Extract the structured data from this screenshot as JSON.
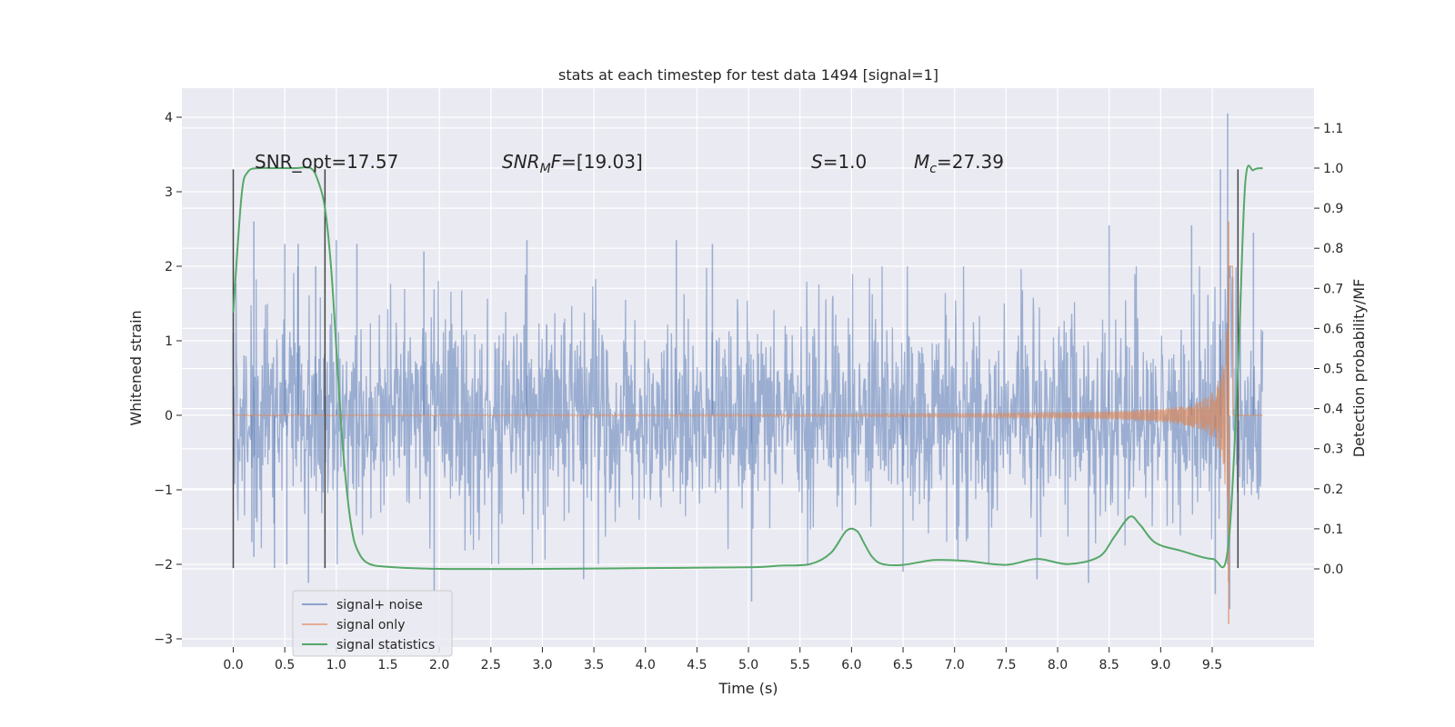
{
  "chart_data": {
    "type": "line",
    "title": "stats at each timestep for test data 1494 [signal=1]",
    "xlabel": "Time (s)",
    "ylabel": "Whitened strain",
    "y2label": "Detection probability/MF",
    "xlim": [
      -0.5,
      10.5
    ],
    "ylim": [
      -3.1,
      4.35
    ],
    "y2lim": [
      -0.195,
      1.17
    ],
    "x_ticks": [
      "0.0",
      "0.5",
      "1.0",
      "1.5",
      "2.0",
      "2.5",
      "3.0",
      "3.5",
      "4.0",
      "4.5",
      "5.0",
      "5.5",
      "6.0",
      "6.5",
      "7.0",
      "7.5",
      "8.0",
      "8.5",
      "9.0",
      "9.5"
    ],
    "y_ticks": [
      "−3",
      "−2",
      "−1",
      "0",
      "1",
      "2",
      "3",
      "4"
    ],
    "y2_ticks": [
      "0.0",
      "0.1",
      "0.2",
      "0.3",
      "0.4",
      "0.5",
      "0.6",
      "0.7",
      "0.8",
      "0.9",
      "1.0",
      "1.1"
    ],
    "grid": true,
    "legend_placement": "lower-left",
    "annotations": {
      "snr_opt": "SNR_opt=17.57",
      "snr_mf_sym": "SNR",
      "snr_mf_sub": "M",
      "snr_mf_rest": "F",
      "snr_mf_val": "=[19.03]",
      "s_sym": "S",
      "s_val": "=1.0",
      "mc_sym": "M",
      "mc_sub": "c",
      "mc_val": "=27.39"
    },
    "vlines": [
      {
        "x": 0.0,
        "y": [
          -2.05,
          3.3
        ]
      },
      {
        "x": 0.89,
        "y": [
          -2.05,
          3.3
        ]
      },
      {
        "x": 9.75,
        "y": [
          -2.05,
          3.3
        ]
      }
    ],
    "series": [
      {
        "name": "signal+ noise",
        "color": "#4c72b0",
        "kind": "noise",
        "x_range": [
          0.0,
          9.99
        ],
        "envelope": {
          "sigma": 0.55,
          "peaks": [
            {
              "x": 0.0,
              "y": 1.1
            },
            {
              "x": 0.18,
              "y": -1.7
            },
            {
              "x": 0.2,
              "y": 2.6
            },
            {
              "x": 0.2,
              "y": -1.9
            },
            {
              "x": 0.4,
              "y": -2.05
            },
            {
              "x": 0.5,
              "y": 2.3
            },
            {
              "x": 0.52,
              "y": -2.0
            },
            {
              "x": 0.63,
              "y": 2.3
            },
            {
              "x": 0.73,
              "y": -2.25
            },
            {
              "x": 0.8,
              "y": 2.0
            },
            {
              "x": 1.0,
              "y": 2.35
            },
            {
              "x": 1.2,
              "y": 2.3
            },
            {
              "x": 1.85,
              "y": 2.2
            },
            {
              "x": 1.95,
              "y": -2.35
            },
            {
              "x": 2.85,
              "y": 2.35
            },
            {
              "x": 3.4,
              "y": -2.2
            },
            {
              "x": 4.3,
              "y": 2.35
            },
            {
              "x": 4.65,
              "y": 2.3
            },
            {
              "x": 5.03,
              "y": -2.5
            },
            {
              "x": 6.5,
              "y": -2.1
            },
            {
              "x": 7.8,
              "y": -2.2
            },
            {
              "x": 8.3,
              "y": -2.25
            },
            {
              "x": 8.5,
              "y": 2.55
            },
            {
              "x": 9.3,
              "y": 2.55
            },
            {
              "x": 9.53,
              "y": -2.4
            },
            {
              "x": 9.58,
              "y": 3.3
            },
            {
              "x": 9.65,
              "y": 4.05
            },
            {
              "x": 9.67,
              "y": -2.6
            },
            {
              "x": 9.9,
              "y": 2.45
            }
          ]
        }
      },
      {
        "name": "signal only",
        "color": "#dd8452",
        "kind": "chirp",
        "x_range": [
          0.0,
          9.99
        ],
        "amplitude_start": 0.0,
        "merger_x": 9.66,
        "merger_amp": 2.6
      },
      {
        "name": "signal statistics",
        "color": "#55a868",
        "kind": "line",
        "axis": "right",
        "x": [
          0.0,
          0.08,
          0.14,
          0.25,
          0.4,
          0.6,
          0.75,
          0.82,
          0.89,
          0.95,
          1.0,
          1.05,
          1.1,
          1.15,
          1.2,
          1.3,
          1.5,
          2.0,
          3.0,
          4.0,
          5.0,
          5.3,
          5.6,
          5.8,
          5.95,
          6.05,
          6.12,
          6.2,
          6.3,
          6.5,
          6.8,
          7.1,
          7.5,
          7.8,
          8.1,
          8.4,
          8.55,
          8.7,
          8.8,
          8.95,
          9.2,
          9.5,
          9.65,
          9.75,
          9.82,
          9.9,
          9.99
        ],
        "y": [
          0.64,
          0.93,
          0.99,
          1.0,
          1.0,
          1.0,
          1.0,
          0.97,
          0.9,
          0.75,
          0.55,
          0.35,
          0.2,
          0.1,
          0.05,
          0.015,
          0.005,
          0.0,
          0.0,
          0.002,
          0.004,
          0.008,
          0.012,
          0.04,
          0.095,
          0.095,
          0.065,
          0.03,
          0.012,
          0.01,
          0.022,
          0.02,
          0.01,
          0.025,
          0.012,
          0.03,
          0.08,
          0.13,
          0.11,
          0.065,
          0.045,
          0.025,
          0.045,
          0.5,
          0.96,
          0.995,
          1.0
        ]
      }
    ]
  }
}
